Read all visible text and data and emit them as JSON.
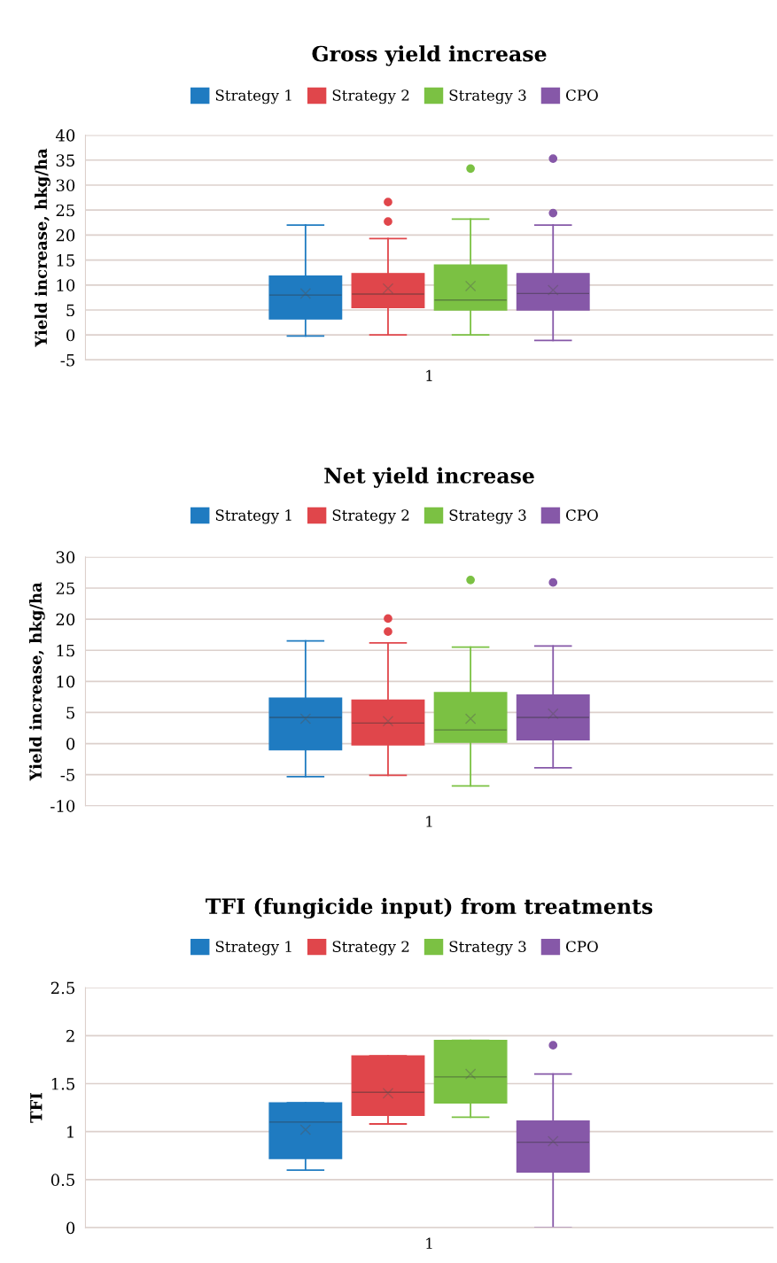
{
  "chart_data": [
    {
      "type": "box",
      "title": "Gross yield increase",
      "ylabel": "Yield increase, hkg/ha",
      "categories": [
        "1"
      ],
      "ylim": [
        -5,
        40
      ],
      "yticks": [
        -5,
        0,
        5,
        10,
        15,
        20,
        25,
        30,
        35,
        40
      ],
      "grid": "y",
      "legend": "top",
      "series": [
        {
          "name": "Strategy 1",
          "color": "#1f7bc1",
          "boxes": [
            {
              "low": -0.2,
              "q1": 3.2,
              "median": 8,
              "q3": 11.8,
              "high": 22,
              "mean": 8.3
            }
          ]
        },
        {
          "name": "Strategy 2",
          "color": "#e0464b",
          "boxes": [
            {
              "low": 0,
              "q1": 5.5,
              "median": 8.2,
              "q3": 12.3,
              "high": 19.3,
              "mean": 9.3,
              "outliers": [
                22.7,
                26.6
              ]
            }
          ]
        },
        {
          "name": "Strategy 3",
          "color": "#7bc143",
          "boxes": [
            {
              "low": 0,
              "q1": 5,
              "median": 7,
              "q3": 14,
              "high": 23.2,
              "mean": 9.8,
              "outliers": [
                33.3
              ]
            }
          ]
        },
        {
          "name": "CPO",
          "color": "#8658a8",
          "boxes": [
            {
              "low": -1.1,
              "q1": 5,
              "median": 8.3,
              "q3": 12.3,
              "high": 22,
              "mean": 9,
              "outliers": [
                24.4,
                35.3
              ]
            }
          ]
        }
      ]
    },
    {
      "type": "box",
      "title": "Net yield increase",
      "ylabel": "Yield increase, hkg/ha",
      "categories": [
        "1"
      ],
      "ylim": [
        -10,
        30
      ],
      "yticks": [
        -10,
        -5,
        0,
        5,
        10,
        15,
        20,
        25,
        30
      ],
      "grid": "y",
      "legend": "top",
      "series": [
        {
          "name": "Strategy 1",
          "color": "#1f7bc1",
          "boxes": [
            {
              "low": -5.3,
              "q1": -1,
              "median": 4.2,
              "q3": 7.3,
              "high": 16.5,
              "mean": 4
            }
          ]
        },
        {
          "name": "Strategy 2",
          "color": "#e0464b",
          "boxes": [
            {
              "low": -5.1,
              "q1": -0.2,
              "median": 3.3,
              "q3": 7,
              "high": 16.2,
              "mean": 3.6,
              "outliers": [
                18,
                20.1
              ]
            }
          ]
        },
        {
          "name": "Strategy 3",
          "color": "#7bc143",
          "boxes": [
            {
              "low": -6.8,
              "q1": 0.2,
              "median": 2.2,
              "q3": 8.2,
              "high": 15.5,
              "mean": 4,
              "outliers": [
                26.3
              ]
            }
          ]
        },
        {
          "name": "CPO",
          "color": "#8658a8",
          "boxes": [
            {
              "low": -3.9,
              "q1": 0.6,
              "median": 4.2,
              "q3": 7.8,
              "high": 15.7,
              "mean": 4.8,
              "outliers": [
                25.9
              ]
            }
          ]
        }
      ]
    },
    {
      "type": "box",
      "title": "TFI (fungicide input) from treatments",
      "ylabel": "TFI",
      "categories": [
        "1"
      ],
      "ylim": [
        0,
        2.5
      ],
      "yticks": [
        0,
        0.5,
        1,
        1.5,
        2,
        2.5
      ],
      "grid": "y",
      "legend": "top",
      "series": [
        {
          "name": "Strategy 1",
          "color": "#1f7bc1",
          "boxes": [
            {
              "low": 0.6,
              "q1": 0.72,
              "median": 1.1,
              "q3": 1.3,
              "high": 1.3,
              "mean": 1.02
            }
          ]
        },
        {
          "name": "Strategy 2",
          "color": "#e0464b",
          "boxes": [
            {
              "low": 1.08,
              "q1": 1.17,
              "median": 1.41,
              "q3": 1.79,
              "high": 1.79,
              "mean": 1.4
            }
          ]
        },
        {
          "name": "Strategy 3",
          "color": "#7bc143",
          "boxes": [
            {
              "low": 1.15,
              "q1": 1.3,
              "median": 1.57,
              "q3": 1.95,
              "high": 1.95,
              "mean": 1.6
            }
          ]
        },
        {
          "name": "CPO",
          "color": "#8658a8",
          "boxes": [
            {
              "low": 0,
              "q1": 0.58,
              "median": 0.89,
              "q3": 1.11,
              "high": 1.6,
              "mean": 0.9,
              "outliers": [
                1.9
              ]
            }
          ]
        }
      ]
    }
  ]
}
